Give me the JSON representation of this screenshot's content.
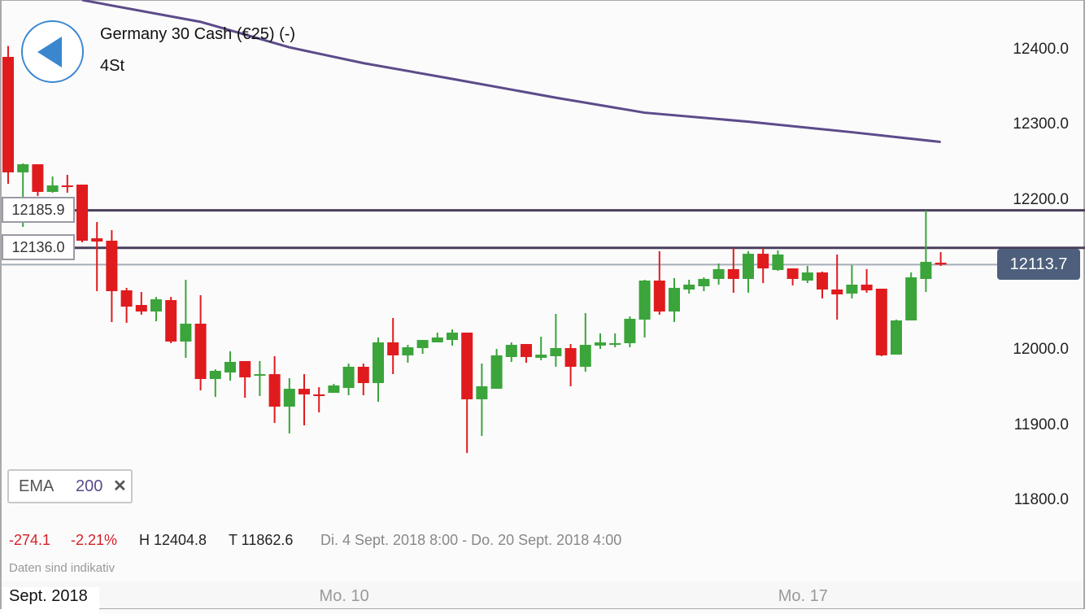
{
  "header": {
    "title": "Germany 30 Cash (€25) (-)",
    "interval": "4St",
    "back_icon": "back-arrow-icon"
  },
  "levels": [
    {
      "label": "12185.9",
      "value": 12185.9
    },
    {
      "label": "12136.0",
      "value": 12136.0
    }
  ],
  "current_price": {
    "label": "12113.7",
    "value": 12113.7
  },
  "indicator": {
    "name": "EMA",
    "period": "200",
    "remove_icon": "close-icon",
    "remove_label": "✕"
  },
  "stats": {
    "change": "-274.1",
    "change_pct": "-2.21%",
    "high": "H 12404.8",
    "low": "T 11862.6",
    "range": "Di. 4 Sept. 2018 8:00 - Do. 20 Sept. 2018 4:00"
  },
  "disclaimer": "Daten sind indikativ",
  "colors": {
    "up": "#3ba43b",
    "down": "#e01b1e",
    "ema": "#5c4b8a",
    "level": "#4a3f5c",
    "price_line": "#a4acb8",
    "accent": "#3a87d0",
    "badge": "#4d5f7c"
  },
  "chart_data": {
    "type": "candlestick",
    "y_axis": {
      "range": [
        11760,
        12460
      ],
      "ticks": [
        {
          "value": 12400,
          "label": "12400.0"
        },
        {
          "value": 12300,
          "label": "12300.0"
        },
        {
          "value": 12200,
          "label": "12200.0"
        },
        {
          "value": 12000,
          "label": "12000.0"
        },
        {
          "value": 11900,
          "label": "11900.0"
        },
        {
          "value": 11800,
          "label": "11800.0"
        }
      ]
    },
    "x_axis": {
      "labels": [
        {
          "label": "Sept. 2018",
          "index": 0
        },
        {
          "label": "Mo. 10",
          "index": 22.7
        },
        {
          "label": "Mo. 17",
          "index": 53.7
        }
      ]
    },
    "ohlc": [
      [
        12390.3,
        12404.8,
        12221.3,
        12236.5
      ],
      [
        12236.5,
        12248.4,
        12163.9,
        12247.3
      ],
      [
        12247.3,
        12247.3,
        12205.0,
        12210.5
      ],
      [
        12210.5,
        12231.0,
        12209.4,
        12219.1
      ],
      [
        12219.1,
        12233.2,
        12209.4,
        12218.0
      ],
      [
        12220.2,
        12220.2,
        12143.3,
        12145.5
      ],
      [
        12148.7,
        12170.4,
        12078.3,
        12144.4
      ],
      [
        12145.5,
        12159.6,
        12037.2,
        12078.3
      ],
      [
        12079.4,
        12082.7,
        12036.1,
        12057.7
      ],
      [
        12059.9,
        12077.2,
        12046.9,
        12051.2
      ],
      [
        12051.2,
        12070.7,
        12038.2,
        12067.5
      ],
      [
        12066.4,
        12070.7,
        12009.0,
        12011.2
      ],
      [
        12011.2,
        12093.5,
        11989.5,
        12035.0
      ],
      [
        12035.0,
        12072.9,
        11946.2,
        11961.3
      ],
      [
        11961.3,
        11974.3,
        11937.5,
        11972.2
      ],
      [
        11970.0,
        11998.2,
        11959.2,
        11984.1
      ],
      [
        11985.2,
        11985.2,
        11936.4,
        11963.5
      ],
      [
        11965.7,
        11985.2,
        11938.6,
        11967.8
      ],
      [
        11967.8,
        11991.7,
        11902.9,
        11924.5
      ],
      [
        11924.5,
        11962.4,
        11888.8,
        11948.3
      ],
      [
        11948.3,
        11967.8,
        11899.6,
        11940.8
      ],
      [
        11940.8,
        11950.5,
        11916.9,
        11939.7
      ],
      [
        11942.9,
        11954.8,
        11942.9,
        11952.7
      ],
      [
        11949.4,
        11981.9,
        11939.7,
        11977.6
      ],
      [
        11977.6,
        11981.9,
        11939.7,
        11955.9
      ],
      [
        11955.9,
        12016.6,
        11931.0,
        12010.1
      ],
      [
        12010.1,
        12042.6,
        11967.8,
        11992.8
      ],
      [
        11992.8,
        12006.8,
        11983.0,
        12003.6
      ],
      [
        12002.5,
        12013.3,
        11994.9,
        12013.3
      ],
      [
        12010.1,
        12023.1,
        12010.1,
        12016.6
      ],
      [
        12013.3,
        12027.4,
        12005.8,
        12023.1
      ],
      [
        12023.1,
        12023.1,
        11862.6,
        11934.3
      ],
      [
        11934.3,
        11981.9,
        11885.5,
        11951.6
      ],
      [
        11948.3,
        12001.4,
        11948.3,
        11992.8
      ],
      [
        11990.6,
        12010.1,
        11984.1,
        12006.8
      ],
      [
        12007.9,
        12007.9,
        11983.0,
        11990.6
      ],
      [
        11989.5,
        12017.7,
        11986.3,
        11993.8
      ],
      [
        11991.7,
        12048.0,
        11977.6,
        12002.5
      ],
      [
        12002.5,
        12007.9,
        11951.6,
        11977.6
      ],
      [
        11977.6,
        12049.1,
        11971.1,
        12006.8
      ],
      [
        12005.8,
        12022.0,
        12001.4,
        12010.1
      ],
      [
        12008.0,
        12022.0,
        12003.6,
        12009.0
      ],
      [
        12009.0,
        12044.7,
        12003.6,
        12041.5
      ],
      [
        12040.4,
        12093.5,
        12016.6,
        12092.4
      ],
      [
        12092.4,
        12131.4,
        12046.9,
        12051.2
      ],
      [
        12051.2,
        12095.7,
        12037.2,
        12082.7
      ],
      [
        12080.5,
        12093.5,
        12075.1,
        12087.0
      ],
      [
        12084.8,
        12096.7,
        12078.3,
        12094.6
      ],
      [
        12094.6,
        12115.1,
        12087.0,
        12107.6
      ],
      [
        12107.6,
        12135.7,
        12076.2,
        12094.6
      ],
      [
        12094.6,
        12131.4,
        12076.2,
        12128.1
      ],
      [
        12128.1,
        12135.7,
        12089.1,
        12108.6
      ],
      [
        12106.5,
        12132.5,
        12105.4,
        12127.1
      ],
      [
        12108.6,
        12108.6,
        12085.9,
        12094.6
      ],
      [
        12092.4,
        12111.9,
        12089.1,
        12103.2
      ],
      [
        12103.2,
        12104.3,
        12068.6,
        12080.5
      ],
      [
        12080.5,
        12127.1,
        12040.4,
        12074.0
      ],
      [
        12075.1,
        12113.0,
        12068.6,
        12087.0
      ],
      [
        12087.0,
        12107.6,
        12076.2,
        12079.4
      ],
      [
        12081.6,
        12081.6,
        11991.7,
        11992.8
      ],
      [
        11993.8,
        12040.4,
        11993.8,
        12039.3
      ],
      [
        12039.3,
        12103.2,
        12039.3,
        12096.7
      ],
      [
        12094.6,
        12185.9,
        12077.2,
        12117.3
      ],
      [
        12116.2,
        12130.3,
        12111.9,
        12113.7
      ]
    ],
    "ema200": [
      [
        5,
        12466
      ],
      [
        13,
        12437
      ],
      [
        19,
        12403
      ],
      [
        24,
        12382
      ],
      [
        30,
        12361
      ],
      [
        37,
        12336
      ],
      [
        43,
        12316
      ],
      [
        50,
        12304
      ],
      [
        57,
        12290
      ],
      [
        63,
        12277
      ]
    ]
  }
}
